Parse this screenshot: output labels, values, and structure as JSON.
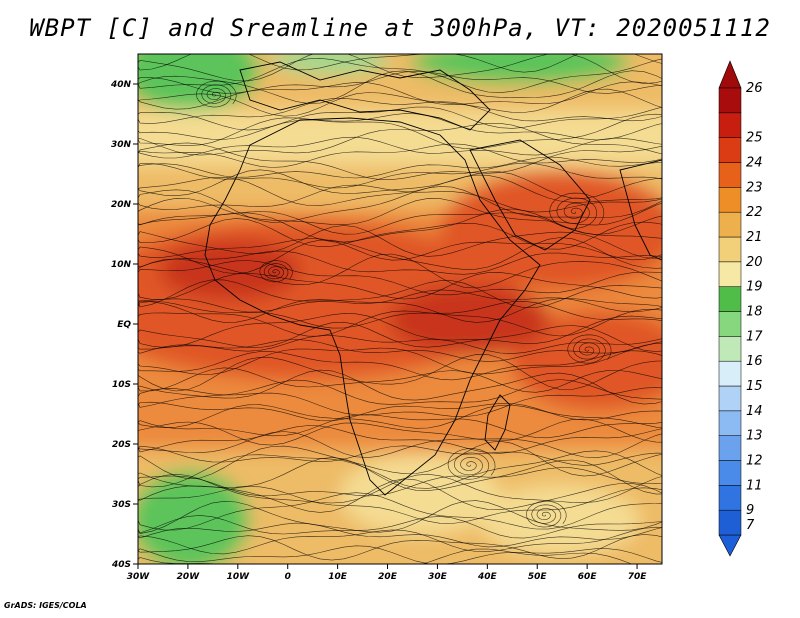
{
  "title": "WBPT [C] and Sreamline at 300hPa, VT: 2020051112",
  "credit": "GrADS: IGES/COLA",
  "map": {
    "lon_range": [
      -30,
      75
    ],
    "lat_range": [
      -40,
      45
    ],
    "lat_ticks": [
      {
        "value": 40,
        "label": "40N"
      },
      {
        "value": 30,
        "label": "30N"
      },
      {
        "value": 20,
        "label": "20N"
      },
      {
        "value": 10,
        "label": "10N"
      },
      {
        "value": 0,
        "label": "EQ"
      },
      {
        "value": -10,
        "label": "10S"
      },
      {
        "value": -20,
        "label": "20S"
      },
      {
        "value": -30,
        "label": "30S"
      },
      {
        "value": -40,
        "label": "40S"
      }
    ],
    "lon_ticks": [
      {
        "value": -30,
        "label": "30W"
      },
      {
        "value": -20,
        "label": "20W"
      },
      {
        "value": -10,
        "label": "10W"
      },
      {
        "value": 0,
        "label": "0"
      },
      {
        "value": 10,
        "label": "10E"
      },
      {
        "value": 20,
        "label": "20E"
      },
      {
        "value": 30,
        "label": "30E"
      },
      {
        "value": 40,
        "label": "40E"
      },
      {
        "value": 50,
        "label": "50E"
      },
      {
        "value": 60,
        "label": "60E"
      },
      {
        "value": 70,
        "label": "70E"
      }
    ]
  },
  "colorbar": {
    "levels": [
      {
        "label": "7",
        "color": "#1f5fd6"
      },
      {
        "label": "9",
        "color": "#2f74e0"
      },
      {
        "label": "11",
        "color": "#4a8ae8"
      },
      {
        "label": "12",
        "color": "#6aa2ee"
      },
      {
        "label": "13",
        "color": "#8cbaf2"
      },
      {
        "label": "14",
        "color": "#b0d2f6"
      },
      {
        "label": "15",
        "color": "#d8eef8"
      },
      {
        "label": "16",
        "color": "#bfeab8"
      },
      {
        "label": "17",
        "color": "#86d77e"
      },
      {
        "label": "18",
        "color": "#4fbd48"
      },
      {
        "label": "19",
        "color": "#f6e9a6"
      },
      {
        "label": "20",
        "color": "#f2d07a"
      },
      {
        "label": "21",
        "color": "#eeb04c"
      },
      {
        "label": "22",
        "color": "#ee8e26"
      },
      {
        "label": "23",
        "color": "#e8611a"
      },
      {
        "label": "24",
        "color": "#dc3c14"
      },
      {
        "label": "25",
        "color": "#c81e10"
      },
      {
        "label": "26",
        "color": "#a80c0c"
      }
    ],
    "upper_arrow_color": "#a00a0a",
    "lower_arrow_color": "#1c5fd8"
  },
  "field_colors": {
    "cool_green": "#5cc45a",
    "light_green": "#9ed98f",
    "pale_yellow": "#f4dc92",
    "tan": "#eebb66",
    "orange": "#ec8a3c",
    "red_orange": "#e05626",
    "deep_red": "#c8361a"
  }
}
